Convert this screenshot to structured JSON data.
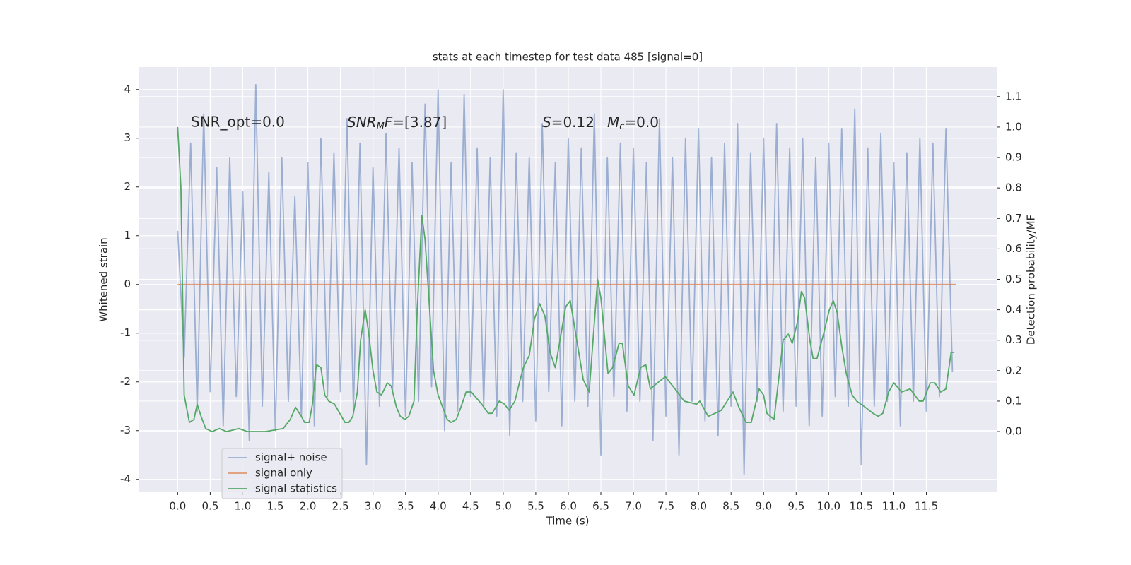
{
  "chart_data": {
    "type": "line",
    "title": "stats at each timestep for test data 485 [signal=0]",
    "xlabel": "Time (s)",
    "ylabel": "Whitened strain",
    "y2label": "Detection probability/MF",
    "xlim": [
      -0.59,
      12.58
    ],
    "ylim": [
      -4.25,
      4.46
    ],
    "y2lim": [
      -0.197,
      1.197
    ],
    "xticks": [
      {
        "value": 0,
        "label": "0.0"
      },
      0.5,
      {
        "value": 1,
        "label": "1.0"
      },
      1.5,
      {
        "value": 2,
        "label": "2.0"
      },
      2.5,
      {
        "value": 3,
        "label": "3.0"
      },
      3.5,
      {
        "value": 4,
        "label": "4.0"
      },
      4.5,
      {
        "value": 5,
        "label": "5.0"
      },
      5.5,
      {
        "value": 6,
        "label": "6.0"
      },
      6.5,
      {
        "value": 7,
        "label": "7.0"
      },
      7.5,
      {
        "value": 8,
        "label": "8.0"
      },
      8.5,
      {
        "value": 9,
        "label": "9.0"
      },
      9.5,
      {
        "value": 10,
        "label": "10.0"
      },
      10.5,
      {
        "value": 11,
        "label": "11.0"
      },
      11.5
    ],
    "yticks": [
      -4,
      -3,
      -2,
      -1,
      0,
      1,
      2,
      3,
      4
    ],
    "y2ticks": [
      {
        "value": 0,
        "label": "0.0"
      },
      0.1,
      0.2,
      0.3,
      0.4,
      0.5,
      0.6,
      0.7,
      0.8,
      0.9,
      {
        "value": 1,
        "label": "1.0"
      },
      1.1
    ],
    "grid": true,
    "legend": "lower left",
    "annotations": [
      {
        "text": "SNR_opt=0.0"
      },
      {
        "parts": [
          "SNR",
          "M",
          "F",
          "=[3.87]"
        ]
      },
      {
        "parts": [
          "S",
          "=0.12"
        ]
      },
      {
        "parts": [
          "M",
          "c",
          "=0.0"
        ]
      }
    ],
    "series": [
      {
        "name": "signal+ noise",
        "color": "#4c72b0",
        "opacity": 0.5,
        "x": [
          0,
          0.1,
          0.2,
          0.3,
          0.4,
          0.5,
          0.6,
          0.7,
          0.8,
          0.9,
          1,
          1.1,
          1.2,
          1.3,
          1.4,
          1.5,
          1.6,
          1.7,
          1.8,
          1.9,
          2,
          2.1,
          2.2,
          2.3,
          2.4,
          2.5,
          2.6,
          2.7,
          2.8,
          2.9,
          3,
          3.1,
          3.2,
          3.3,
          3.4,
          3.5,
          3.6,
          3.7,
          3.8,
          3.9,
          4,
          4.1,
          4.2,
          4.3,
          4.4,
          4.5,
          4.6,
          4.7,
          4.8,
          4.9,
          5,
          5.1,
          5.2,
          5.3,
          5.4,
          5.5,
          5.6,
          5.7,
          5.8,
          5.9,
          6,
          6.1,
          6.2,
          6.3,
          6.4,
          6.5,
          6.6,
          6.7,
          6.8,
          6.9,
          7,
          7.1,
          7.2,
          7.3,
          7.4,
          7.5,
          7.6,
          7.7,
          7.8,
          7.9,
          8,
          8.1,
          8.2,
          8.3,
          8.4,
          8.5,
          8.6,
          8.7,
          8.8,
          8.9,
          9,
          9.1,
          9.2,
          9.3,
          9.4,
          9.5,
          9.6,
          9.7,
          9.8,
          9.9,
          10,
          10.1,
          10.2,
          10.3,
          10.4,
          10.5,
          10.6,
          10.7,
          10.8,
          10.9,
          11,
          11.1,
          11.2,
          11.3,
          11.4,
          11.5,
          11.6,
          11.7,
          11.8,
          11.9
        ],
        "values": [
          1.1,
          -1.5,
          2.9,
          -2.6,
          3.5,
          -2.2,
          2.4,
          -2.9,
          2.6,
          -2.3,
          1.9,
          -3.2,
          4.1,
          -2.5,
          2.3,
          -3.0,
          2.6,
          -2.4,
          1.8,
          -2.7,
          2.5,
          -2.9,
          3.0,
          -2.3,
          2.7,
          -2.2,
          3.4,
          -2.6,
          2.9,
          -3.7,
          2.4,
          -2.5,
          3.1,
          -2.2,
          2.8,
          -2.7,
          2.5,
          -2.4,
          3.7,
          -2.1,
          4.0,
          -3.0,
          2.5,
          -2.6,
          3.9,
          -2.3,
          2.8,
          -2.5,
          2.6,
          -2.7,
          4.0,
          -3.1,
          2.7,
          -2.4,
          2.6,
          -2.8,
          3.3,
          -2.2,
          2.5,
          -2.9,
          3.0,
          -2.4,
          2.8,
          -2.5,
          3.5,
          -3.5,
          2.6,
          -2.3,
          2.9,
          -2.6,
          2.8,
          -2.4,
          2.5,
          -3.2,
          3.4,
          -2.7,
          2.6,
          -3.5,
          3.0,
          -2.4,
          3.2,
          -2.8,
          2.6,
          -3.1,
          2.9,
          -2.5,
          3.3,
          -3.9,
          2.7,
          -2.4,
          3.0,
          -2.8,
          3.3,
          -2.6,
          2.8,
          -2.5,
          3.0,
          -2.9,
          2.6,
          -2.7,
          2.9,
          -2.3,
          3.2,
          -2.5,
          3.6,
          -3.7,
          2.8,
          -2.5,
          3.1,
          -2.4,
          2.5,
          -2.9,
          2.7,
          -2.4,
          3.0,
          -2.6,
          2.9,
          -2.3,
          3.2,
          -1.8
        ]
      },
      {
        "name": "signal only",
        "color": "#dd8452",
        "opacity": 0.8,
        "x": [
          0,
          11.95
        ],
        "values": [
          0,
          0
        ]
      },
      {
        "name": "signal statistics",
        "color": "#55a868",
        "opacity": 1,
        "axis": "y2",
        "x": [
          0,
          0.05,
          0.1,
          0.18,
          0.25,
          0.3,
          0.36,
          0.43,
          0.53,
          0.64,
          0.75,
          0.94,
          1.07,
          1.35,
          1.62,
          1.73,
          1.81,
          1.9,
          1.95,
          2.02,
          2.07,
          2.13,
          2.2,
          2.26,
          2.32,
          2.41,
          2.49,
          2.57,
          2.63,
          2.69,
          2.76,
          2.81,
          2.88,
          2.93,
          3.0,
          3.06,
          3.13,
          3.22,
          3.28,
          3.36,
          3.42,
          3.49,
          3.55,
          3.63,
          3.68,
          3.75,
          3.8,
          3.87,
          3.93,
          4.0,
          4.07,
          4.14,
          4.2,
          4.28,
          4.35,
          4.43,
          4.51,
          4.59,
          4.67,
          4.77,
          4.83,
          4.94,
          5.02,
          5.09,
          5.18,
          5.26,
          5.31,
          5.4,
          5.48,
          5.56,
          5.64,
          5.72,
          5.8,
          5.96,
          6.03,
          6.23,
          6.32,
          6.45,
          6.5,
          6.61,
          6.68,
          6.78,
          6.83,
          6.92,
          7.01,
          7.11,
          7.19,
          7.26,
          7.37,
          7.49,
          7.64,
          7.78,
          7.97,
          8.02,
          8.15,
          8.35,
          8.53,
          8.62,
          8.73,
          8.81,
          8.93,
          9.0,
          9.05,
          9.16,
          9.3,
          9.38,
          9.44,
          9.52,
          9.58,
          9.63,
          9.71,
          9.76,
          9.82,
          9.92,
          10.01,
          10.07,
          10.13,
          10.2,
          10.27,
          10.36,
          10.43,
          10.56,
          10.68,
          10.76,
          10.83,
          10.92,
          11.0,
          11.12,
          11.25,
          11.32,
          11.39,
          11.45,
          11.56,
          11.63,
          11.72,
          11.8,
          11.88,
          11.93
        ],
        "values": [
          1.0,
          0.8,
          0.12,
          0.03,
          0.04,
          0.09,
          0.05,
          0.01,
          0.0,
          0.01,
          0.0,
          0.01,
          0.0,
          0.0,
          0.01,
          0.04,
          0.08,
          0.05,
          0.03,
          0.03,
          0.09,
          0.22,
          0.21,
          0.12,
          0.1,
          0.09,
          0.06,
          0.03,
          0.03,
          0.05,
          0.13,
          0.3,
          0.4,
          0.33,
          0.2,
          0.13,
          0.12,
          0.16,
          0.15,
          0.08,
          0.05,
          0.04,
          0.05,
          0.1,
          0.4,
          0.71,
          0.63,
          0.4,
          0.2,
          0.12,
          0.08,
          0.04,
          0.03,
          0.04,
          0.08,
          0.13,
          0.13,
          0.11,
          0.09,
          0.06,
          0.06,
          0.1,
          0.09,
          0.07,
          0.1,
          0.17,
          0.21,
          0.25,
          0.37,
          0.42,
          0.38,
          0.26,
          0.21,
          0.41,
          0.43,
          0.17,
          0.13,
          0.5,
          0.44,
          0.19,
          0.21,
          0.29,
          0.29,
          0.15,
          0.12,
          0.21,
          0.22,
          0.14,
          0.16,
          0.18,
          0.14,
          0.1,
          0.09,
          0.1,
          0.05,
          0.07,
          0.13,
          0.08,
          0.03,
          0.03,
          0.14,
          0.12,
          0.06,
          0.04,
          0.3,
          0.32,
          0.29,
          0.36,
          0.46,
          0.44,
          0.3,
          0.24,
          0.24,
          0.32,
          0.4,
          0.43,
          0.39,
          0.28,
          0.19,
          0.12,
          0.1,
          0.08,
          0.06,
          0.05,
          0.06,
          0.13,
          0.16,
          0.13,
          0.14,
          0.12,
          0.1,
          0.1,
          0.16,
          0.16,
          0.13,
          0.14,
          0.26,
          0.26
        ]
      }
    ]
  }
}
